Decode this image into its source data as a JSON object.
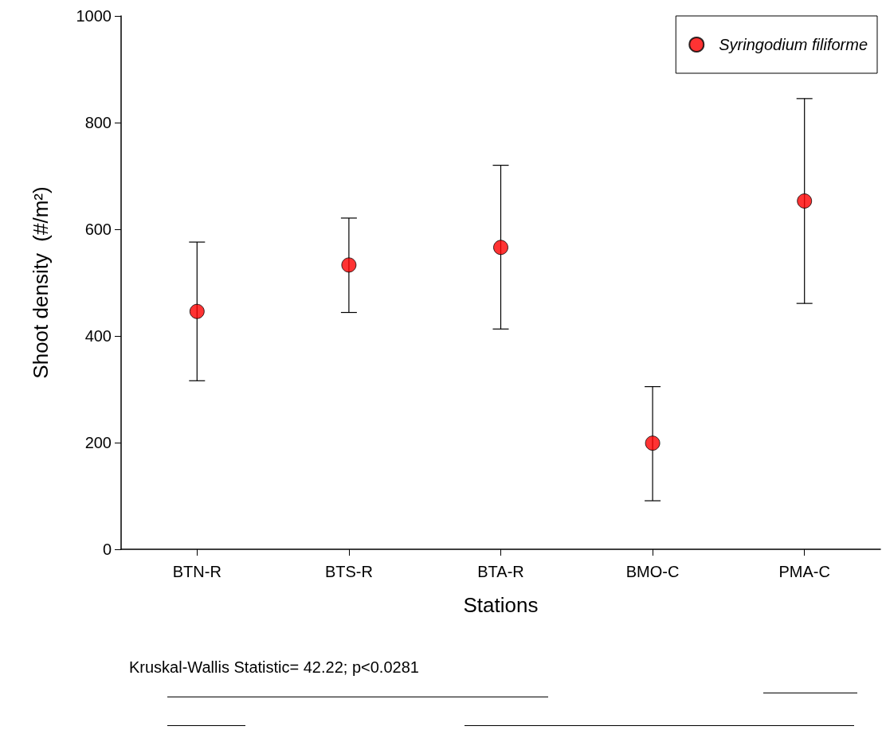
{
  "chart_data": {
    "type": "scatter",
    "xlabel": "Stations",
    "ylabel": "Shoot density  (#/m²)",
    "categories": [
      "BTN-R",
      "BTS-R",
      "BTA-R",
      "BMO-C",
      "PMA-C"
    ],
    "series": [
      {
        "name": "Syringodium filiforme",
        "color": "#ff0000",
        "values": [
          446,
          533,
          566,
          199,
          653
        ],
        "errors": [
          [
            316,
            576
          ],
          [
            444,
            621
          ],
          [
            413,
            720
          ],
          [
            91,
            305
          ],
          [
            461,
            845
          ]
        ]
      }
    ],
    "ylim": [
      0,
      1000
    ],
    "yticks": [
      0,
      200,
      400,
      600,
      800,
      1000
    ],
    "grid": false,
    "legend": "top right",
    "marker": "circle",
    "annotations": [
      "Kruskal-Wallis Statistic= 42.22; p<0.0281"
    ]
  }
}
